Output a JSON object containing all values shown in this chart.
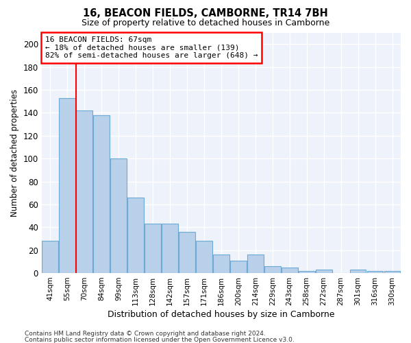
{
  "title": "16, BEACON FIELDS, CAMBORNE, TR14 7BH",
  "subtitle": "Size of property relative to detached houses in Camborne",
  "xlabel": "Distribution of detached houses by size in Camborne",
  "ylabel": "Number of detached properties",
  "bar_color": "#b8d0ea",
  "bar_edge_color": "#6aaad4",
  "background_color": "#eef2fb",
  "grid_color": "#ffffff",
  "categories": [
    "41sqm",
    "55sqm",
    "70sqm",
    "84sqm",
    "99sqm",
    "113sqm",
    "128sqm",
    "142sqm",
    "157sqm",
    "171sqm",
    "186sqm",
    "200sqm",
    "214sqm",
    "229sqm",
    "243sqm",
    "258sqm",
    "272sqm",
    "287sqm",
    "301sqm",
    "316sqm",
    "330sqm"
  ],
  "values": [
    28,
    153,
    142,
    138,
    100,
    66,
    43,
    43,
    36,
    28,
    16,
    11,
    16,
    6,
    5,
    2,
    3,
    0,
    3,
    2,
    2
  ],
  "ylim": [
    0,
    210
  ],
  "yticks": [
    0,
    20,
    40,
    60,
    80,
    100,
    120,
    140,
    160,
    180,
    200
  ],
  "annotation_line1": "16 BEACON FIELDS: 67sqm",
  "annotation_line2": "← 18% of detached houses are smaller (139)",
  "annotation_line3": "82% of semi-detached houses are larger (648) →",
  "vline_x_pos": 1.5,
  "footer_line1": "Contains HM Land Registry data © Crown copyright and database right 2024.",
  "footer_line2": "Contains public sector information licensed under the Open Government Licence v3.0."
}
